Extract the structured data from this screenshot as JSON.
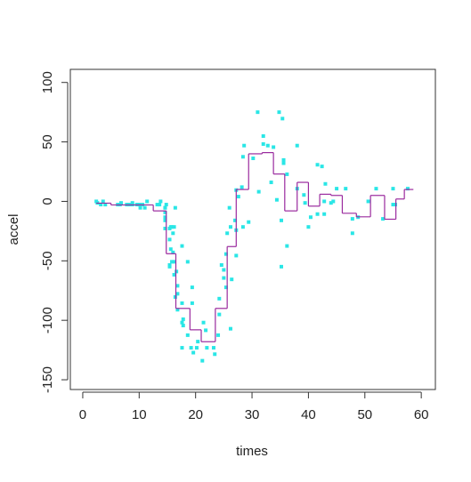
{
  "chart_data": {
    "type": "scatter",
    "x_label": "times",
    "y_label": "accel",
    "xlim": [
      -2.2,
      62.5
    ],
    "ylim": [
      -158.2,
      111
    ],
    "xticks": [
      0,
      10,
      20,
      30,
      40,
      50,
      60
    ],
    "yticks": [
      -150,
      -100,
      -50,
      0,
      50,
      100
    ],
    "series": [
      {
        "color": "#2ae6e6",
        "x": [
          2.4,
          2.6,
          3.2,
          3.6,
          4.0,
          6.2,
          6.6,
          6.8,
          7.8,
          8.2,
          8.8,
          8.8,
          9.6,
          10.0,
          10.2,
          10.6,
          11.0,
          11.4,
          13.2,
          13.6,
          13.8,
          14.6,
          14.6,
          14.6,
          14.6,
          14.6,
          14.6,
          14.8,
          15.4,
          15.4,
          15.4,
          15.4,
          15.6,
          15.6,
          15.8,
          15.8,
          16.0,
          16.0,
          16.2,
          16.2,
          16.2,
          16.4,
          16.4,
          16.6,
          16.8,
          16.8,
          16.8,
          17.6,
          17.6,
          17.6,
          17.6,
          17.8,
          17.8,
          18.6,
          18.6,
          19.2,
          19.4,
          19.4,
          19.6,
          20.2,
          20.4,
          21.2,
          21.4,
          21.8,
          22.0,
          23.2,
          23.4,
          24.0,
          24.2,
          24.2,
          24.6,
          25.0,
          25.0,
          25.4,
          25.4,
          25.6,
          26.0,
          26.2,
          26.2,
          26.4,
          27.0,
          27.2,
          27.2,
          27.2,
          27.6,
          28.2,
          28.4,
          28.4,
          28.6,
          29.4,
          30.2,
          31.0,
          31.2,
          32.0,
          32.0,
          32.8,
          33.4,
          33.8,
          34.4,
          34.8,
          35.2,
          35.2,
          35.4,
          35.6,
          35.6,
          36.2,
          36.2,
          38.0,
          38.0,
          39.2,
          39.4,
          40.0,
          40.4,
          41.6,
          41.6,
          42.4,
          42.8,
          42.8,
          43.0,
          44.0,
          44.4,
          45.0,
          46.6,
          47.8,
          47.8,
          48.8,
          50.6,
          52.0,
          53.2,
          55.0,
          55.0,
          55.4,
          57.6
        ],
        "values": [
          0.0,
          -1.3,
          -2.7,
          0.0,
          -2.7,
          -2.7,
          -2.7,
          -1.3,
          -2.7,
          -2.7,
          -1.3,
          -2.7,
          -2.7,
          -2.7,
          -5.4,
          -2.7,
          -5.4,
          0.0,
          -2.7,
          -2.7,
          0.0,
          -13.3,
          -5.4,
          -5.4,
          -9.3,
          -16.0,
          -22.8,
          -2.7,
          -22.8,
          -32.1,
          -53.5,
          -54.9,
          -40.2,
          -21.5,
          -21.5,
          -50.8,
          -42.9,
          -26.8,
          -21.5,
          -50.8,
          -61.7,
          -5.4,
          -80.4,
          -59.0,
          -71.0,
          -91.1,
          -77.7,
          -37.5,
          -85.6,
          -123.1,
          -101.9,
          -99.1,
          -104.4,
          -112.5,
          -50.8,
          -123.1,
          -85.6,
          -72.3,
          -127.2,
          -123.1,
          -117.9,
          -134.0,
          -101.9,
          -108.4,
          -123.1,
          -123.1,
          -128.5,
          -112.5,
          -95.1,
          -81.8,
          -53.5,
          -64.4,
          -57.6,
          -72.3,
          -44.3,
          -26.8,
          -5.4,
          -107.1,
          -21.5,
          -65.6,
          -16.0,
          -45.6,
          -24.2,
          9.5,
          4.0,
          12.0,
          -21.5,
          37.5,
          46.9,
          -17.4,
          36.2,
          75.0,
          8.1,
          54.9,
          48.2,
          46.9,
          16.0,
          45.6,
          1.3,
          75.0,
          -16.0,
          -54.9,
          69.6,
          34.8,
          32.1,
          -37.5,
          22.8,
          46.9,
          10.7,
          5.4,
          -1.3,
          -21.5,
          -13.3,
          30.8,
          -10.7,
          29.4,
          0.0,
          -10.7,
          14.7,
          -1.3,
          0.0,
          10.7,
          10.7,
          -26.8,
          -14.7,
          -13.3,
          0.0,
          10.7,
          -14.7,
          -2.7,
          10.7,
          -2.7,
          10.7
        ]
      }
    ],
    "step": {
      "color": "#9a2a9e",
      "edges": [
        2.4,
        5,
        12.5,
        14.8,
        16.5,
        19,
        21,
        23.5,
        25.6,
        27.2,
        29.4,
        31.8,
        33.8,
        35.8,
        38,
        40,
        42,
        44,
        46,
        48.5,
        51,
        53.5,
        55.5,
        57,
        58.6
      ],
      "values": [
        -1.5,
        -3,
        -8,
        -44,
        -90,
        -108,
        -118,
        -90,
        -38,
        10,
        40,
        41,
        23,
        -8,
        16,
        -4,
        6,
        5,
        -10,
        -13,
        5,
        -15,
        2,
        10
      ]
    }
  }
}
